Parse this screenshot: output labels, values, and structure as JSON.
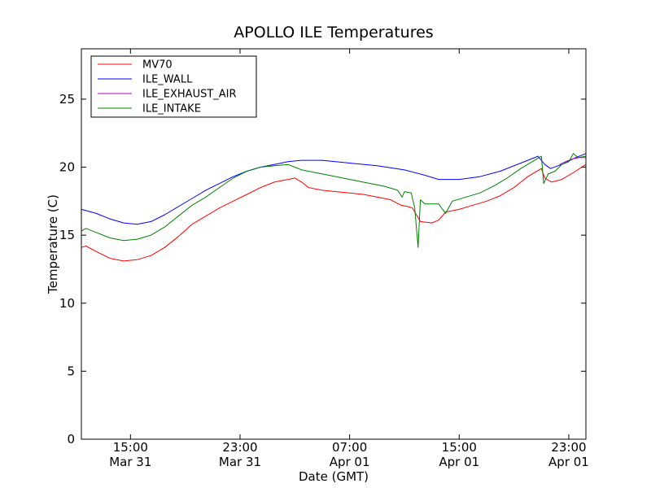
{
  "chart_data": {
    "type": "line",
    "title": "APOLLO ILE Temperatures",
    "xlabel": "Date (GMT)",
    "ylabel": "Temperature (C)",
    "xlim": [
      "2015-03-31T11:25",
      "2015-04-02T00:15"
    ],
    "ylim": [
      0,
      28.7
    ],
    "yticks": [
      0,
      5,
      10,
      15,
      20,
      25
    ],
    "xticks": [
      {
        "t": "2015-03-31T15:00",
        "line1": "15:00",
        "line2": "Mar 31"
      },
      {
        "t": "2015-03-31T23:00",
        "line1": "23:00",
        "line2": "Mar 31"
      },
      {
        "t": "2015-04-01T07:00",
        "line1": "07:00",
        "line2": "Apr 01"
      },
      {
        "t": "2015-04-01T15:00",
        "line1": "15:00",
        "line2": "Apr 01"
      },
      {
        "t": "2015-04-01T23:00",
        "line1": "23:00",
        "line2": "Apr 01"
      }
    ],
    "grid": false,
    "legend_position": "top-left",
    "series": [
      {
        "name": "MV70",
        "color": "#ff0000",
        "points": [
          [
            "2015-03-31T11:25",
            14.1
          ],
          [
            "2015-03-31T11:45",
            14.2
          ],
          [
            "2015-03-31T12:30",
            13.8
          ],
          [
            "2015-03-31T13:30",
            13.3
          ],
          [
            "2015-03-31T14:30",
            13.1
          ],
          [
            "2015-03-31T15:30",
            13.2
          ],
          [
            "2015-03-31T16:30",
            13.5
          ],
          [
            "2015-03-31T17:30",
            14.1
          ],
          [
            "2015-03-31T18:30",
            14.9
          ],
          [
            "2015-03-31T19:30",
            15.8
          ],
          [
            "2015-03-31T20:30",
            16.4
          ],
          [
            "2015-03-31T21:30",
            17.0
          ],
          [
            "2015-03-31T22:30",
            17.5
          ],
          [
            "2015-03-31T23:30",
            18.0
          ],
          [
            "2015-04-01T00:30",
            18.5
          ],
          [
            "2015-04-01T01:30",
            18.9
          ],
          [
            "2015-04-01T02:30",
            19.1
          ],
          [
            "2015-04-01T03:00",
            19.2
          ],
          [
            "2015-04-01T03:30",
            18.9
          ],
          [
            "2015-04-01T04:00",
            18.5
          ],
          [
            "2015-04-01T05:00",
            18.3
          ],
          [
            "2015-04-01T06:00",
            18.2
          ],
          [
            "2015-04-01T07:00",
            18.1
          ],
          [
            "2015-04-01T08:00",
            18.0
          ],
          [
            "2015-04-01T09:00",
            17.8
          ],
          [
            "2015-04-01T10:00",
            17.6
          ],
          [
            "2015-04-01T10:45",
            17.2
          ],
          [
            "2015-04-01T11:15",
            17.1
          ],
          [
            "2015-04-01T11:35",
            17.0
          ],
          [
            "2015-04-01T12:10",
            16.0
          ],
          [
            "2015-04-01T13:00",
            15.9
          ],
          [
            "2015-04-01T13:30",
            16.1
          ],
          [
            "2015-04-01T14:00",
            16.7
          ],
          [
            "2015-04-01T15:00",
            16.9
          ],
          [
            "2015-04-01T16:00",
            17.2
          ],
          [
            "2015-04-01T17:00",
            17.5
          ],
          [
            "2015-04-01T18:00",
            17.9
          ],
          [
            "2015-04-01T19:00",
            18.5
          ],
          [
            "2015-04-01T20:00",
            19.3
          ],
          [
            "2015-04-01T21:00",
            19.9
          ],
          [
            "2015-04-01T21:15",
            19.2
          ],
          [
            "2015-04-01T21:45",
            18.9
          ],
          [
            "2015-04-01T22:30",
            19.1
          ],
          [
            "2015-04-01T23:30",
            19.7
          ],
          [
            "2015-04-02T00:15",
            20.2
          ]
        ]
      },
      {
        "name": "ILE_WALL",
        "color": "#0000ff",
        "points": [
          [
            "2015-03-31T11:25",
            16.9
          ],
          [
            "2015-03-31T12:30",
            16.6
          ],
          [
            "2015-03-31T13:30",
            16.2
          ],
          [
            "2015-03-31T14:30",
            15.9
          ],
          [
            "2015-03-31T15:30",
            15.8
          ],
          [
            "2015-03-31T16:30",
            16.0
          ],
          [
            "2015-03-31T17:30",
            16.5
          ],
          [
            "2015-03-31T18:30",
            17.1
          ],
          [
            "2015-03-31T19:30",
            17.7
          ],
          [
            "2015-03-31T20:30",
            18.3
          ],
          [
            "2015-03-31T21:30",
            18.8
          ],
          [
            "2015-03-31T22:30",
            19.3
          ],
          [
            "2015-03-31T23:30",
            19.7
          ],
          [
            "2015-04-01T00:30",
            20.0
          ],
          [
            "2015-04-01T01:30",
            20.2
          ],
          [
            "2015-04-01T02:30",
            20.4
          ],
          [
            "2015-04-01T03:30",
            20.5
          ],
          [
            "2015-04-01T05:00",
            20.5
          ],
          [
            "2015-04-01T07:00",
            20.3
          ],
          [
            "2015-04-01T09:00",
            20.1
          ],
          [
            "2015-04-01T11:00",
            19.8
          ],
          [
            "2015-04-01T12:30",
            19.4
          ],
          [
            "2015-04-01T13:30",
            19.1
          ],
          [
            "2015-04-01T15:00",
            19.1
          ],
          [
            "2015-04-01T16:30",
            19.3
          ],
          [
            "2015-04-01T18:00",
            19.7
          ],
          [
            "2015-04-01T19:30",
            20.3
          ],
          [
            "2015-04-01T20:45",
            20.8
          ],
          [
            "2015-04-01T21:15",
            20.2
          ],
          [
            "2015-04-01T21:40",
            19.9
          ],
          [
            "2015-04-01T22:30",
            20.2
          ],
          [
            "2015-04-01T23:30",
            20.7
          ],
          [
            "2015-04-02T00:15",
            21.0
          ]
        ]
      },
      {
        "name": "ILE_EXHAUST_AIR",
        "color": "#bf00bf",
        "points": [
          [
            "2015-04-01T22:20",
            20.2
          ],
          [
            "2015-04-01T22:45",
            20.4
          ],
          [
            "2015-04-01T23:15",
            20.6
          ],
          [
            "2015-04-01T23:45",
            20.7
          ],
          [
            "2015-04-02T00:15",
            20.7
          ]
        ]
      },
      {
        "name": "ILE_INTAKE",
        "color": "#008000",
        "points": [
          [
            "2015-03-31T11:25",
            15.3
          ],
          [
            "2015-03-31T11:45",
            15.5
          ],
          [
            "2015-03-31T12:30",
            15.2
          ],
          [
            "2015-03-31T13:30",
            14.8
          ],
          [
            "2015-03-31T14:30",
            14.6
          ],
          [
            "2015-03-31T15:30",
            14.7
          ],
          [
            "2015-03-31T16:30",
            15.0
          ],
          [
            "2015-03-31T17:30",
            15.6
          ],
          [
            "2015-03-31T18:30",
            16.4
          ],
          [
            "2015-03-31T19:30",
            17.2
          ],
          [
            "2015-03-31T20:30",
            17.8
          ],
          [
            "2015-03-31T21:30",
            18.5
          ],
          [
            "2015-03-31T22:30",
            19.2
          ],
          [
            "2015-03-31T23:30",
            19.7
          ],
          [
            "2015-04-01T00:30",
            20.0
          ],
          [
            "2015-04-01T01:30",
            20.1
          ],
          [
            "2015-04-01T02:30",
            20.2
          ],
          [
            "2015-04-01T03:30",
            19.8
          ],
          [
            "2015-04-01T04:30",
            19.6
          ],
          [
            "2015-04-01T05:30",
            19.4
          ],
          [
            "2015-04-01T06:30",
            19.2
          ],
          [
            "2015-04-01T07:30",
            19.0
          ],
          [
            "2015-04-01T08:30",
            18.8
          ],
          [
            "2015-04-01T09:30",
            18.6
          ],
          [
            "2015-04-01T10:30",
            18.3
          ],
          [
            "2015-04-01T10:50",
            17.8
          ],
          [
            "2015-04-01T11:00",
            18.2
          ],
          [
            "2015-04-01T11:30",
            18.1
          ],
          [
            "2015-04-01T11:45",
            17.0
          ],
          [
            "2015-04-01T12:00",
            14.1
          ],
          [
            "2015-04-01T12:10",
            17.6
          ],
          [
            "2015-04-01T12:30",
            17.3
          ],
          [
            "2015-04-01T13:30",
            17.3
          ],
          [
            "2015-04-01T14:00",
            16.6
          ],
          [
            "2015-04-01T14:30",
            17.5
          ],
          [
            "2015-04-01T15:30",
            17.8
          ],
          [
            "2015-04-01T16:30",
            18.1
          ],
          [
            "2015-04-01T17:30",
            18.6
          ],
          [
            "2015-04-01T18:30",
            19.2
          ],
          [
            "2015-04-01T19:30",
            19.9
          ],
          [
            "2015-04-01T20:30",
            20.5
          ],
          [
            "2015-04-01T21:00",
            20.8
          ],
          [
            "2015-04-01T21:10",
            18.8
          ],
          [
            "2015-04-01T21:30",
            19.5
          ],
          [
            "2015-04-01T22:00",
            19.7
          ],
          [
            "2015-04-01T22:30",
            20.2
          ],
          [
            "2015-04-01T23:00",
            20.4
          ],
          [
            "2015-04-01T23:20",
            21.0
          ],
          [
            "2015-04-01T23:40",
            20.7
          ],
          [
            "2015-04-02T00:15",
            20.8
          ]
        ]
      }
    ]
  }
}
